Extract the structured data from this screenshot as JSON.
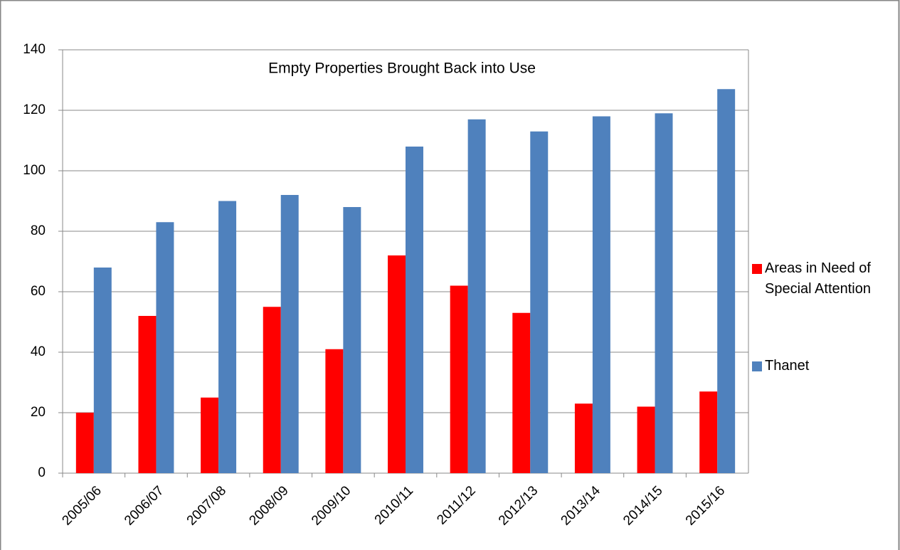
{
  "chart_data": {
    "type": "bar",
    "title": "Empty Properties Brought Back into Use",
    "categories": [
      "2005/06",
      "2006/07",
      "2007/08",
      "2008/09",
      "2009/10",
      "2010/11",
      "2011/12",
      "2012/13",
      "2013/14",
      "2014/15",
      "2015/16"
    ],
    "series": [
      {
        "name": "Areas in Need of Special Attention",
        "color": "#ff0000",
        "values": [
          20,
          52,
          25,
          55,
          41,
          72,
          62,
          53,
          23,
          22,
          27
        ]
      },
      {
        "name": "Thanet",
        "color": "#4f81bd",
        "values": [
          68,
          83,
          90,
          92,
          88,
          108,
          117,
          113,
          118,
          119,
          127
        ]
      }
    ],
    "ylim": [
      0,
      140
    ],
    "yticks": [
      0,
      20,
      40,
      60,
      80,
      100,
      120,
      140
    ],
    "grid": true,
    "legend": "right"
  }
}
